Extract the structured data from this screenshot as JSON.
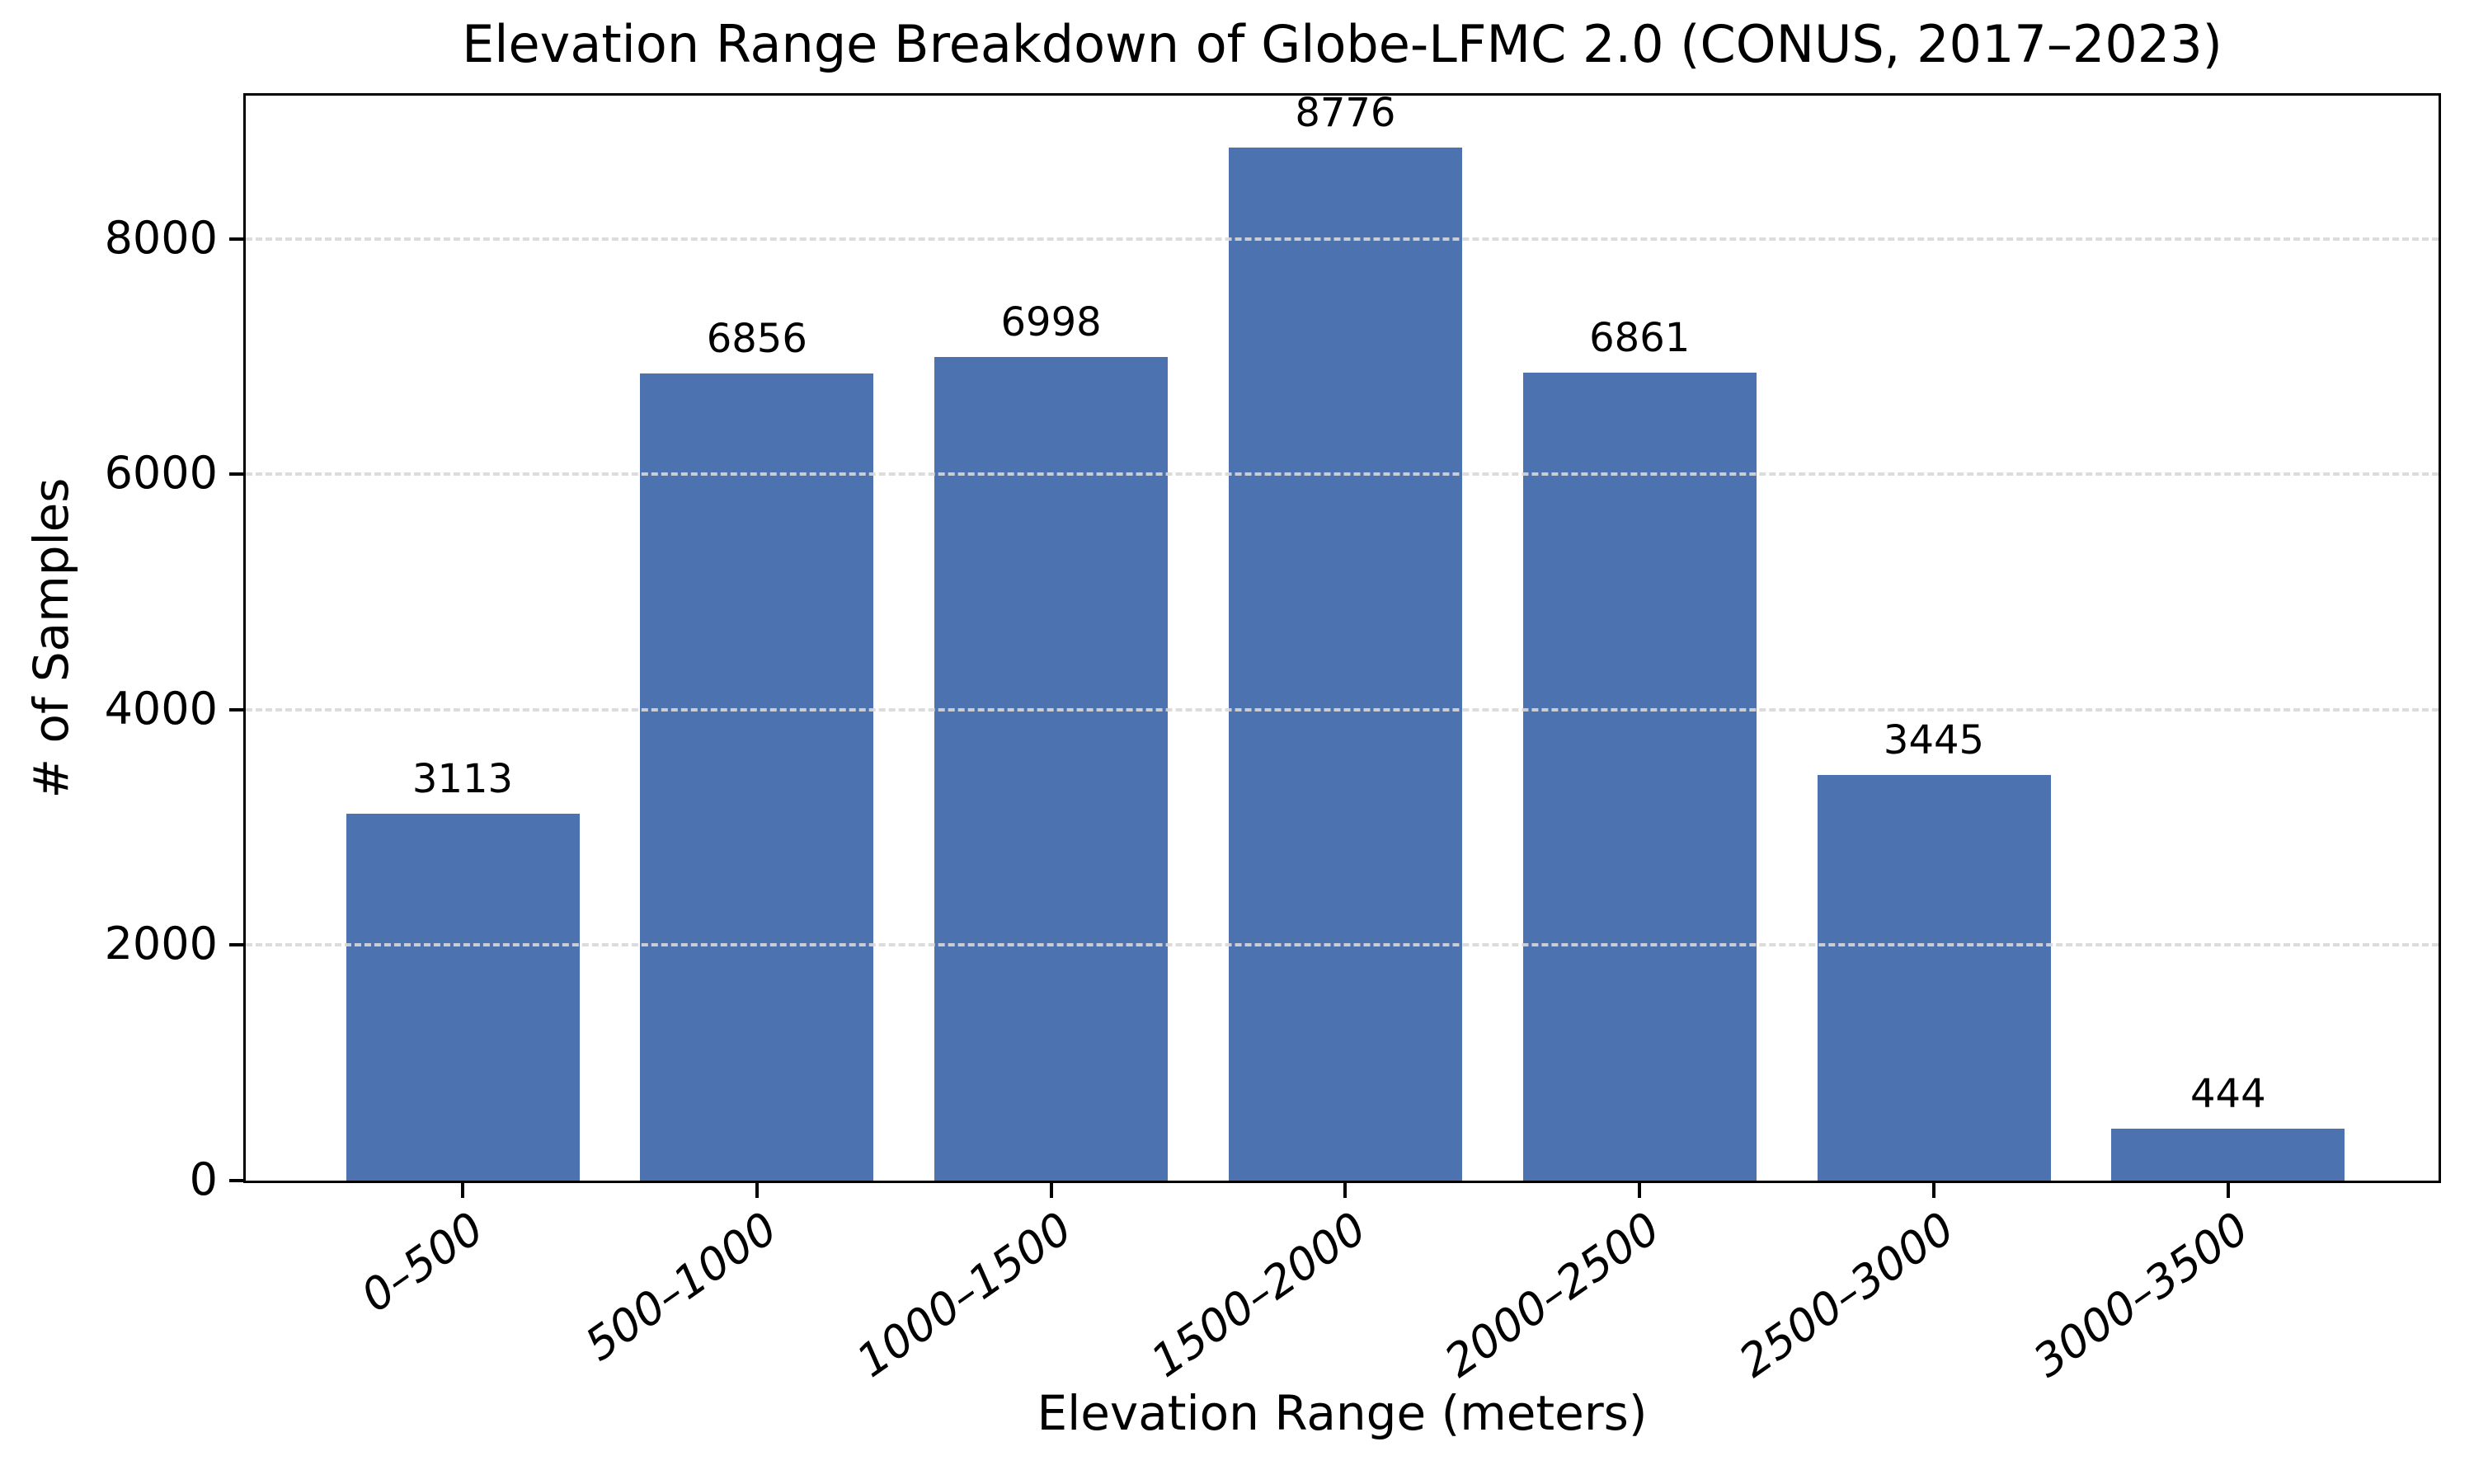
{
  "chart_data": {
    "type": "bar",
    "title": "Elevation Range Breakdown of Globe-LFMC 2.0 (CONUS, 2017–2023)",
    "xlabel": "Elevation Range (meters)",
    "ylabel": "# of Samples",
    "categories": [
      "0–500",
      "500–1000",
      "1000–1500",
      "1500–2000",
      "2000–2500",
      "2500–3000",
      "3000–3500"
    ],
    "values": [
      3113,
      6856,
      6998,
      8776,
      6861,
      3445,
      444
    ],
    "bar_labels": [
      "3113",
      "6856",
      "6998",
      "8776",
      "6861",
      "3445",
      "444"
    ],
    "yticks": [
      0,
      2000,
      4000,
      6000,
      8000
    ],
    "ytick_labels": [
      "0",
      "2000",
      "4000",
      "6000",
      "8000"
    ],
    "ylim": [
      0,
      9215
    ],
    "xtick_style": "italic, rotated 35deg",
    "grid": "horizontal dashed lines at y ticks, drawn above bars",
    "legend": "none",
    "colors": {
      "bar": "#4C72B0",
      "grid": "#d8d8d8",
      "spine": "#000000",
      "text": "#000000",
      "background": "#ffffff"
    }
  }
}
